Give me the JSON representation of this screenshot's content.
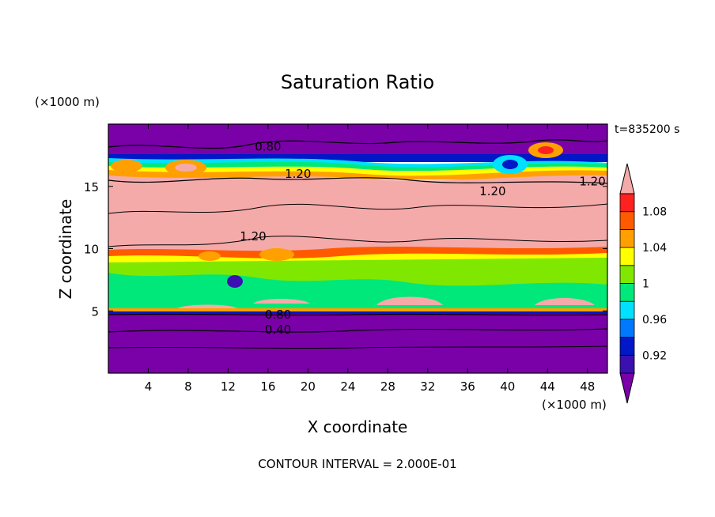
{
  "chart_data": {
    "type": "heatmap",
    "title": "Saturation Ratio",
    "xlabel": "X coordinate",
    "ylabel": "Z coordinate",
    "x_unit": "(×1000 m)",
    "y_unit": "(×1000 m)",
    "time_label": "t=835200 s",
    "footer": "CONTOUR INTERVAL = 2.000E-01",
    "xlim": [
      0,
      50
    ],
    "ylim": [
      0,
      20
    ],
    "x_ticks": [
      4,
      8,
      12,
      16,
      20,
      24,
      28,
      32,
      36,
      40,
      44,
      48
    ],
    "y_ticks": [
      5,
      10,
      15
    ],
    "colorbar": {
      "levels": [
        0.92,
        0.96,
        1,
        1.04,
        1.08
      ],
      "labels": [
        "0.92",
        "0.96",
        "1",
        "1.04",
        "1.08"
      ],
      "colors": [
        "#7a00a8",
        "#3a10b0",
        "#0018c8",
        "#0078ff",
        "#00e0ff",
        "#00e87a",
        "#80e800",
        "#ffff00",
        "#ffa000",
        "#ff5a00",
        "#ff2020",
        "#f5aaaa"
      ]
    },
    "contour_labels": [
      {
        "text": "0.80",
        "x": 16,
        "z": 18.2
      },
      {
        "text": "1.20",
        "x": 19,
        "z": 16.0
      },
      {
        "text": "1.20",
        "x": 38.5,
        "z": 14.6
      },
      {
        "text": "1.20",
        "x": 48.5,
        "z": 15.4
      },
      {
        "text": "1.20",
        "x": 14.5,
        "z": 11.0
      },
      {
        "text": "0.80",
        "x": 17,
        "z": 4.7
      },
      {
        "text": "0.40",
        "x": 17,
        "z": 3.5
      }
    ]
  }
}
